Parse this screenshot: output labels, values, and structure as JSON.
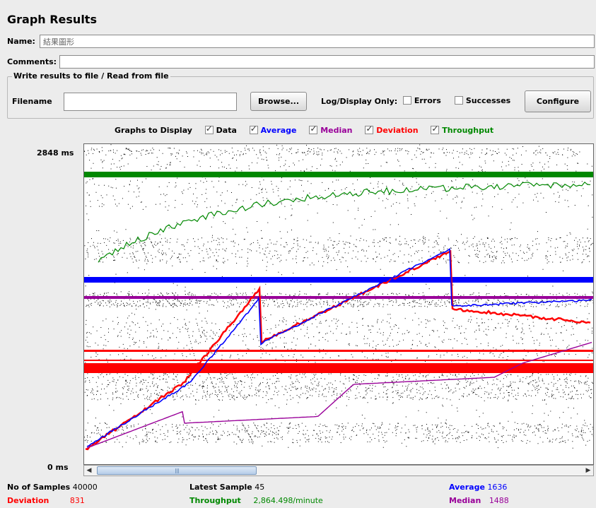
{
  "window": {
    "title": "Graph Results"
  },
  "fields": {
    "name_label": "Name:",
    "name_value": "結果圖形",
    "comments_label": "Comments:",
    "comments_value": ""
  },
  "file_section": {
    "legend": "Write results to file / Read from file",
    "filename_label": "Filename",
    "filename_value": "",
    "browse_label": "Browse...",
    "log_display_label": "Log/Display Only:",
    "errors_label": "Errors",
    "errors_checked": false,
    "successes_label": "Successes",
    "successes_checked": false,
    "configure_label": "Configure"
  },
  "graphs_to_display": {
    "label": "Graphs to Display",
    "options": [
      {
        "label": "Data",
        "checked": true,
        "color": "#000000"
      },
      {
        "label": "Average",
        "checked": true,
        "color": "#0000ff"
      },
      {
        "label": "Median",
        "checked": true,
        "color": "#990099"
      },
      {
        "label": "Deviation",
        "checked": true,
        "color": "#ff0000"
      },
      {
        "label": "Throughput",
        "checked": true,
        "color": "#008800"
      }
    ]
  },
  "axis": {
    "y_max": "2848",
    "y_min": "0",
    "unit": "ms"
  },
  "stats": {
    "samples_label": "No of Samples",
    "samples_value": "40000",
    "latest_label": "Latest Sample",
    "latest_value": "45",
    "average_label": "Average",
    "average_value": "1636",
    "deviation_label": "Deviation",
    "deviation_value": "831",
    "throughput_label": "Throughput",
    "throughput_value": "2,864.498/minute",
    "median_label": "Median",
    "median_value": "1488"
  },
  "colors": {
    "data": "#000000",
    "average": "#0000ff",
    "median": "#990099",
    "deviation": "#ff0000",
    "throughput": "#008800"
  }
}
